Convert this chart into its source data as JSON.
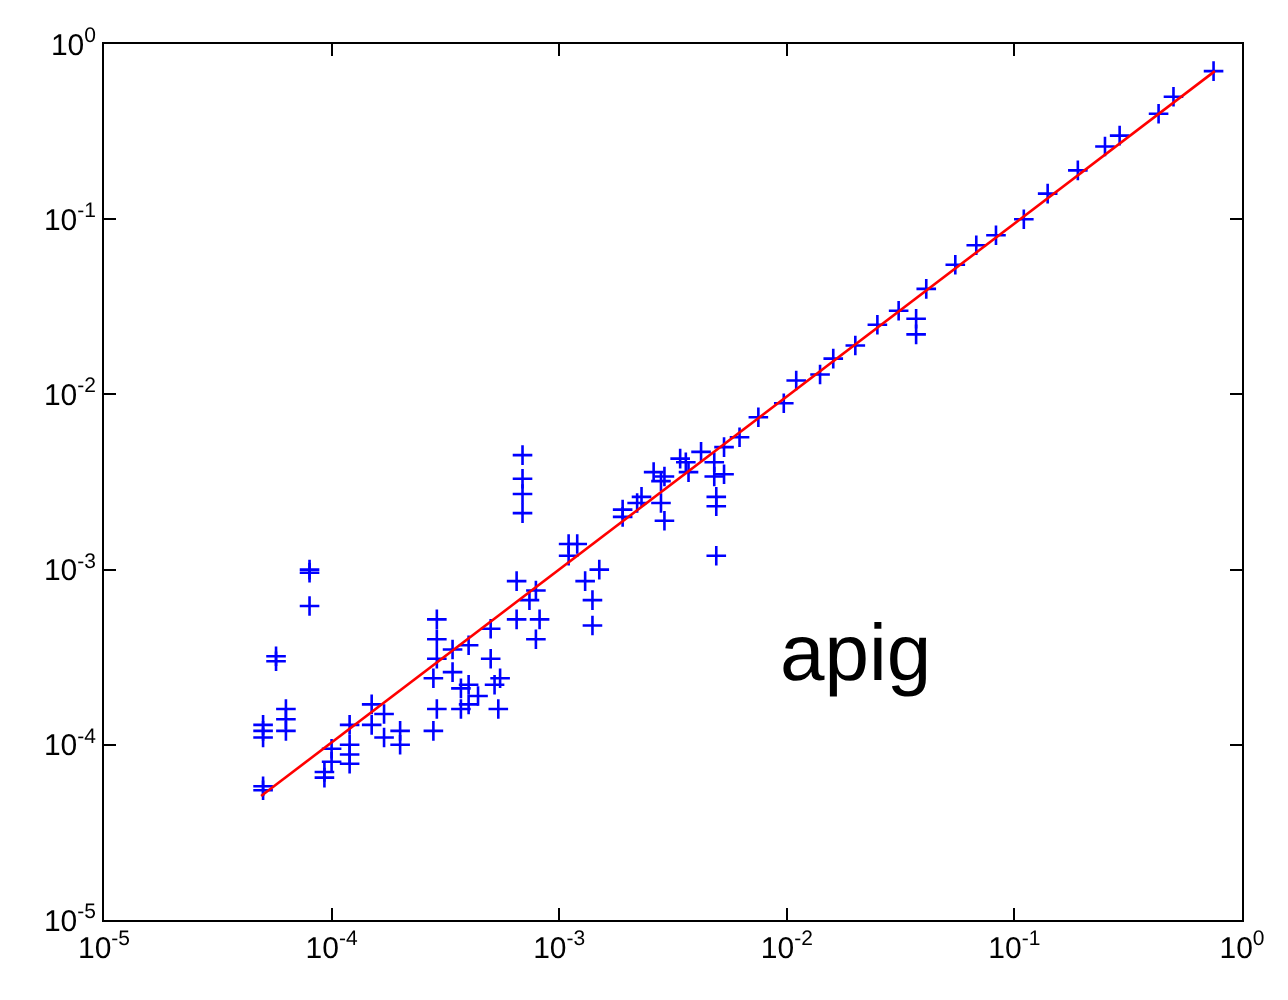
{
  "chart_data": {
    "type": "scatter",
    "log": "xy",
    "grid": false,
    "marker": "cross",
    "xlim": [
      1e-05,
      1
    ],
    "ylim": [
      1e-05,
      1
    ],
    "xticks": [
      {
        "value": 1e-05,
        "label": "10$^{-5}$"
      },
      {
        "value": 0.0001,
        "label": "10$^{-4}$"
      },
      {
        "value": 0.001,
        "label": "10$^{-3}$"
      },
      {
        "value": 0.01,
        "label": "10$^{-2}$"
      },
      {
        "value": 0.1,
        "label": "10$^{-1}$"
      },
      {
        "value": 1,
        "label": "10$^{0}$"
      }
    ],
    "yticks": [
      {
        "value": 1e-05,
        "label": "10$^{-5}$"
      },
      {
        "value": 0.0001,
        "label": "10$^{-4}$"
      },
      {
        "value": 0.001,
        "label": "10$^{-3}$"
      },
      {
        "value": 0.01,
        "label": "10$^{-2}$"
      },
      {
        "value": 0.1,
        "label": "10$^{-1}$"
      },
      {
        "value": 1,
        "label": "10$^{0}$"
      }
    ],
    "annotations": [
      "apig"
    ],
    "series": [
      {
        "color": "#0000ff",
        "x": [
          5e-05,
          5e-05,
          5e-05,
          5e-05,
          5e-05,
          5.7e-05,
          5.7e-05,
          6.3e-05,
          6.3e-05,
          6.3e-05,
          8e-05,
          8e-05,
          8e-05,
          9.3e-05,
          9.3e-05,
          0.0001,
          0.0001,
          0.00012,
          0.00012,
          0.00012,
          0.00012,
          0.00015,
          0.00015,
          0.00017,
          0.00017,
          0.0002,
          0.0002,
          0.00028,
          0.00028,
          0.00029,
          0.00029,
          0.00029,
          0.00029,
          0.00034,
          0.00034,
          0.00037,
          0.00037,
          0.0004,
          0.0004,
          0.0004,
          0.00044,
          0.0005,
          0.0005,
          0.00052,
          0.00054,
          0.00055,
          0.00065,
          0.00065,
          0.00069,
          0.00069,
          0.00069,
          0.00069,
          0.00074,
          0.00079,
          0.00082,
          0.00079,
          0.0011,
          0.0011,
          0.0012,
          0.0013,
          0.0014,
          0.0014,
          0.0015,
          0.0019,
          0.0019,
          0.0023,
          0.0026,
          0.0028,
          0.0028,
          0.0029,
          0.0034,
          0.0037,
          0.0042,
          0.0049,
          0.0049,
          0.0048,
          0.0053,
          0.0022,
          0.0029,
          0.0036,
          0.0048,
          0.0049,
          0.0053,
          0.0062,
          0.0075,
          0.0097,
          0.011,
          0.014,
          0.016,
          0.02,
          0.025,
          0.031,
          0.037,
          0.037,
          0.041,
          0.055,
          0.068,
          0.083,
          0.11,
          0.14,
          0.19,
          0.25,
          0.29,
          0.43,
          0.5,
          0.75
        ],
        "values": [
          5.8e-05,
          5.5e-05,
          0.00012,
          0.00013,
          0.00011,
          0.0003,
          0.00032,
          0.00014,
          0.00016,
          0.00012,
          0.00096,
          0.001,
          0.00062,
          6.5e-05,
          7e-05,
          8e-05,
          9.5e-05,
          0.0001,
          8.8e-05,
          7.8e-05,
          0.00013,
          0.00013,
          0.00017,
          0.00015,
          0.00011,
          0.00012,
          0.0001,
          0.00012,
          0.00024,
          0.00052,
          0.0004,
          0.00031,
          0.00016,
          0.00026,
          0.00035,
          0.00016,
          0.00021,
          0.00022,
          0.00037,
          0.00017,
          0.00019,
          0.00046,
          0.00031,
          0.00022,
          0.00016,
          0.00024,
          0.00052,
          0.00086,
          0.0045,
          0.0033,
          0.0027,
          0.0021,
          0.00067,
          0.00076,
          0.00052,
          0.0004,
          0.0012,
          0.0014,
          0.0014,
          0.00086,
          0.00067,
          0.00048,
          0.001,
          0.002,
          0.0022,
          0.0026,
          0.0036,
          0.0032,
          0.0024,
          0.0019,
          0.0043,
          0.0036,
          0.0047,
          0.0023,
          0.0012,
          0.0041,
          0.0035,
          0.0024,
          0.0034,
          0.0041,
          0.0034,
          0.0026,
          0.005,
          0.0057,
          0.0074,
          0.0089,
          0.012,
          0.013,
          0.016,
          0.019,
          0.025,
          0.03,
          0.027,
          0.022,
          0.04,
          0.055,
          0.071,
          0.081,
          0.1,
          0.14,
          0.19,
          0.26,
          0.3,
          0.4,
          0.5,
          0.7
        ]
      },
      {
        "type": "line",
        "marker": "none",
        "color": "#ff0000",
        "x": [
          4.9e-05,
          0.76
        ],
        "values": [
          5.1e-05,
          0.7
        ]
      }
    ]
  }
}
